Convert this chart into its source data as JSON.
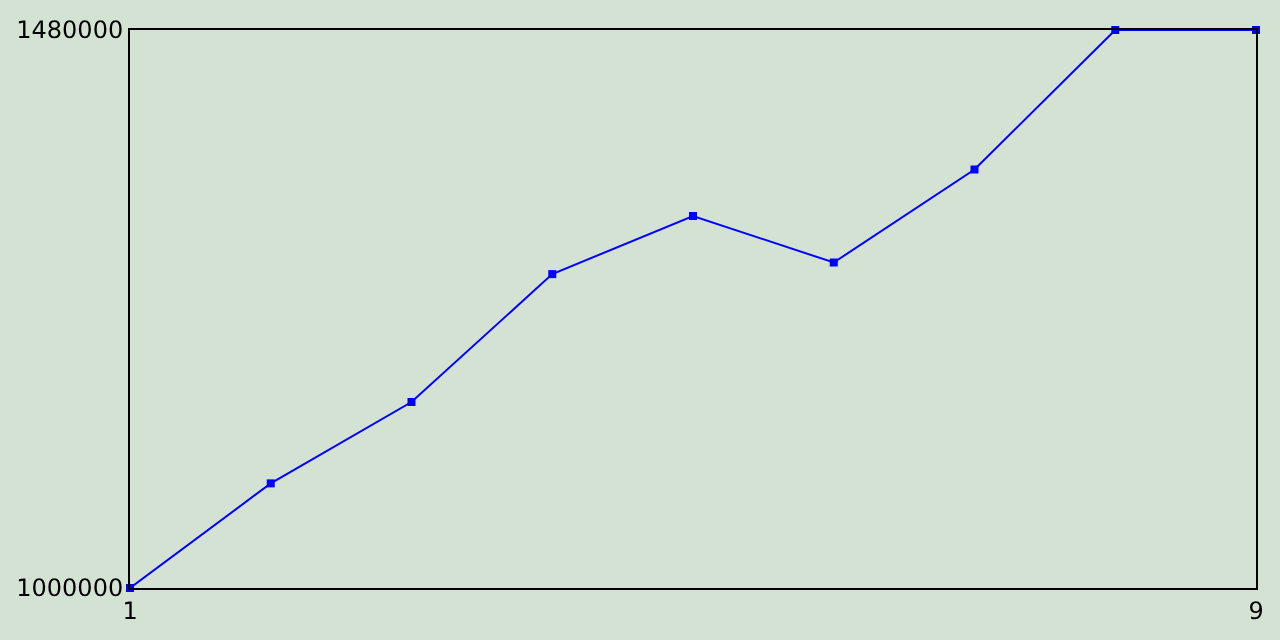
{
  "chart_data": {
    "type": "line",
    "x": [
      1,
      2,
      3,
      4,
      5,
      6,
      7,
      8,
      9
    ],
    "series": [
      {
        "color": "#0000ff",
        "values": [
          1000000,
          1090000,
          1160000,
          1270000,
          1320000,
          1280000,
          1360000,
          1480000,
          1480000
        ]
      }
    ],
    "xlim": [
      1,
      9
    ],
    "xticks": [
      1,
      9
    ],
    "ylim": [
      1000000,
      1480000
    ],
    "yticks": [
      1000000,
      1480000
    ],
    "marker": "square",
    "line_style": "solid"
  }
}
